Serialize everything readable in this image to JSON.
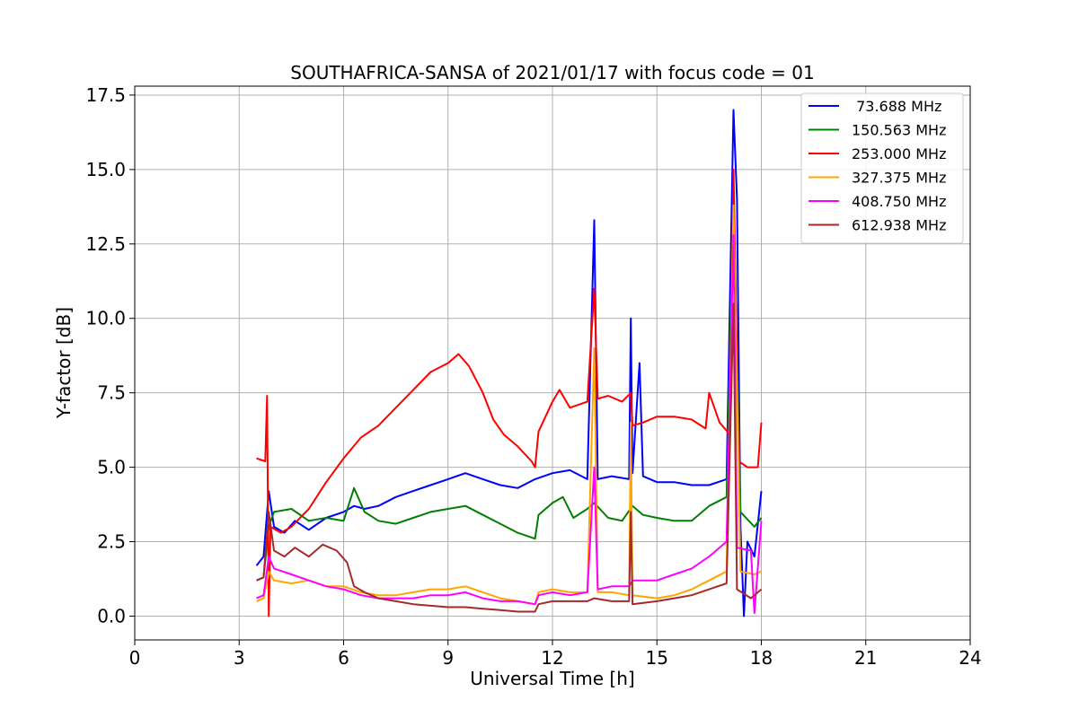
{
  "chart_data": {
    "type": "line",
    "title": "SOUTHAFRICA-SANSA of 2021/01/17 with focus code = 01",
    "xlabel": "Universal Time [h]",
    "ylabel": "Y-factor [dB]",
    "xlim": [
      0,
      24
    ],
    "ylim": [
      -0.8,
      17.8
    ],
    "xticks": [
      0,
      3,
      6,
      9,
      12,
      15,
      18,
      21,
      24
    ],
    "yticks": [
      0.0,
      2.5,
      5.0,
      7.5,
      10.0,
      12.5,
      15.0,
      17.5
    ],
    "xtick_labels": [
      "0",
      "3",
      "6",
      "9",
      "12",
      "15",
      "18",
      "21",
      "24"
    ],
    "ytick_labels": [
      "0.0",
      "2.5",
      "5.0",
      "7.5",
      "10.0",
      "12.5",
      "15.0",
      "17.5"
    ],
    "grid": true,
    "legend_position": "top-right",
    "series": [
      {
        "name": " 73.688 MHz",
        "color": "#0000ff",
        "points": [
          [
            3.5,
            1.7
          ],
          [
            3.7,
            2.0
          ],
          [
            3.85,
            4.2
          ],
          [
            4.0,
            3.0
          ],
          [
            4.3,
            2.8
          ],
          [
            4.6,
            3.2
          ],
          [
            5.0,
            2.9
          ],
          [
            5.5,
            3.3
          ],
          [
            6.0,
            3.5
          ],
          [
            6.3,
            3.7
          ],
          [
            6.6,
            3.6
          ],
          [
            7.0,
            3.7
          ],
          [
            7.5,
            4.0
          ],
          [
            8.0,
            4.2
          ],
          [
            8.5,
            4.4
          ],
          [
            9.0,
            4.6
          ],
          [
            9.5,
            4.8
          ],
          [
            10.0,
            4.6
          ],
          [
            10.5,
            4.4
          ],
          [
            11.0,
            4.3
          ],
          [
            11.5,
            4.6
          ],
          [
            12.0,
            4.8
          ],
          [
            12.5,
            4.9
          ],
          [
            13.0,
            4.6
          ],
          [
            13.2,
            13.3
          ],
          [
            13.3,
            4.6
          ],
          [
            13.7,
            4.7
          ],
          [
            14.2,
            4.6
          ],
          [
            14.25,
            10.0
          ],
          [
            14.3,
            4.8
          ],
          [
            14.5,
            8.5
          ],
          [
            14.6,
            4.7
          ],
          [
            15.0,
            4.5
          ],
          [
            15.5,
            4.5
          ],
          [
            16.0,
            4.4
          ],
          [
            16.5,
            4.4
          ],
          [
            17.0,
            4.6
          ],
          [
            17.2,
            17.0
          ],
          [
            17.3,
            14.0
          ],
          [
            17.4,
            3.0
          ],
          [
            17.5,
            0.0
          ],
          [
            17.6,
            2.5
          ],
          [
            17.8,
            2.0
          ],
          [
            18.0,
            4.2
          ]
        ]
      },
      {
        "name": "150.563 MHz",
        "color": "#008000",
        "points": [
          [
            3.5,
            1.2
          ],
          [
            3.7,
            1.3
          ],
          [
            3.85,
            3.0
          ],
          [
            4.0,
            3.5
          ],
          [
            4.5,
            3.6
          ],
          [
            5.0,
            3.2
          ],
          [
            5.5,
            3.3
          ],
          [
            6.0,
            3.2
          ],
          [
            6.3,
            4.3
          ],
          [
            6.6,
            3.5
          ],
          [
            7.0,
            3.2
          ],
          [
            7.5,
            3.1
          ],
          [
            8.0,
            3.3
          ],
          [
            8.5,
            3.5
          ],
          [
            9.0,
            3.6
          ],
          [
            9.5,
            3.7
          ],
          [
            10.0,
            3.4
          ],
          [
            10.5,
            3.1
          ],
          [
            11.0,
            2.8
          ],
          [
            11.5,
            2.6
          ],
          [
            11.6,
            3.4
          ],
          [
            12.0,
            3.8
          ],
          [
            12.3,
            4.0
          ],
          [
            12.6,
            3.3
          ],
          [
            13.0,
            3.6
          ],
          [
            13.2,
            3.8
          ],
          [
            13.6,
            3.3
          ],
          [
            14.0,
            3.2
          ],
          [
            14.3,
            3.7
          ],
          [
            14.6,
            3.4
          ],
          [
            15.0,
            3.3
          ],
          [
            15.5,
            3.2
          ],
          [
            16.0,
            3.2
          ],
          [
            16.5,
            3.7
          ],
          [
            17.0,
            4.0
          ],
          [
            17.2,
            14.0
          ],
          [
            17.4,
            3.5
          ],
          [
            17.8,
            3.0
          ],
          [
            18.0,
            3.3
          ]
        ]
      },
      {
        "name": "253.000 MHz",
        "color": "#ff0000",
        "points": [
          [
            3.5,
            5.3
          ],
          [
            3.75,
            5.2
          ],
          [
            3.8,
            7.4
          ],
          [
            3.85,
            0.0
          ],
          [
            3.9,
            3.0
          ],
          [
            4.2,
            2.8
          ],
          [
            4.5,
            3.0
          ],
          [
            5.0,
            3.6
          ],
          [
            5.5,
            4.5
          ],
          [
            6.0,
            5.3
          ],
          [
            6.5,
            6.0
          ],
          [
            7.0,
            6.4
          ],
          [
            7.5,
            7.0
          ],
          [
            8.0,
            7.6
          ],
          [
            8.5,
            8.2
          ],
          [
            9.0,
            8.5
          ],
          [
            9.3,
            8.8
          ],
          [
            9.6,
            8.4
          ],
          [
            10.0,
            7.5
          ],
          [
            10.3,
            6.6
          ],
          [
            10.6,
            6.1
          ],
          [
            11.0,
            5.7
          ],
          [
            11.4,
            5.2
          ],
          [
            11.5,
            5.0
          ],
          [
            11.6,
            6.2
          ],
          [
            12.0,
            7.2
          ],
          [
            12.2,
            7.6
          ],
          [
            12.5,
            7.0
          ],
          [
            13.0,
            7.2
          ],
          [
            13.2,
            11.0
          ],
          [
            13.3,
            7.3
          ],
          [
            13.6,
            7.4
          ],
          [
            14.0,
            7.2
          ],
          [
            14.25,
            7.5
          ],
          [
            14.3,
            6.4
          ],
          [
            14.6,
            6.5
          ],
          [
            15.0,
            6.7
          ],
          [
            15.5,
            6.7
          ],
          [
            16.0,
            6.6
          ],
          [
            16.4,
            6.3
          ],
          [
            16.5,
            7.5
          ],
          [
            16.8,
            6.5
          ],
          [
            17.1,
            6.1
          ],
          [
            17.2,
            15.0
          ],
          [
            17.35,
            5.2
          ],
          [
            17.6,
            5.0
          ],
          [
            17.9,
            5.0
          ],
          [
            18.0,
            6.5
          ]
        ]
      },
      {
        "name": "327.375 MHz",
        "color": "#ffa500",
        "points": [
          [
            3.5,
            0.5
          ],
          [
            3.7,
            0.6
          ],
          [
            3.85,
            1.5
          ],
          [
            4.0,
            1.2
          ],
          [
            4.5,
            1.1
          ],
          [
            5.0,
            1.2
          ],
          [
            5.5,
            1.0
          ],
          [
            6.0,
            1.0
          ],
          [
            6.5,
            0.8
          ],
          [
            7.0,
            0.7
          ],
          [
            7.5,
            0.7
          ],
          [
            8.0,
            0.8
          ],
          [
            8.5,
            0.9
          ],
          [
            9.0,
            0.9
          ],
          [
            9.5,
            1.0
          ],
          [
            10.0,
            0.8
          ],
          [
            10.5,
            0.6
          ],
          [
            11.0,
            0.5
          ],
          [
            11.5,
            0.4
          ],
          [
            11.6,
            0.8
          ],
          [
            12.0,
            0.9
          ],
          [
            12.5,
            0.8
          ],
          [
            13.0,
            0.8
          ],
          [
            13.2,
            9.0
          ],
          [
            13.3,
            0.8
          ],
          [
            13.7,
            0.8
          ],
          [
            14.2,
            0.7
          ],
          [
            14.25,
            6.5
          ],
          [
            14.3,
            0.7
          ],
          [
            15.0,
            0.6
          ],
          [
            15.5,
            0.7
          ],
          [
            16.0,
            0.9
          ],
          [
            16.5,
            1.2
          ],
          [
            17.0,
            1.5
          ],
          [
            17.2,
            13.8
          ],
          [
            17.4,
            1.5
          ],
          [
            17.8,
            1.4
          ],
          [
            18.0,
            1.5
          ]
        ]
      },
      {
        "name": "408.750 MHz",
        "color": "#ff00ff",
        "points": [
          [
            3.5,
            0.6
          ],
          [
            3.7,
            0.7
          ],
          [
            3.85,
            2.0
          ],
          [
            4.0,
            1.6
          ],
          [
            4.5,
            1.4
          ],
          [
            5.0,
            1.2
          ],
          [
            5.5,
            1.0
          ],
          [
            6.0,
            0.9
          ],
          [
            6.5,
            0.7
          ],
          [
            7.0,
            0.6
          ],
          [
            7.5,
            0.6
          ],
          [
            8.0,
            0.6
          ],
          [
            8.5,
            0.7
          ],
          [
            9.0,
            0.7
          ],
          [
            9.5,
            0.8
          ],
          [
            10.0,
            0.6
          ],
          [
            10.5,
            0.5
          ],
          [
            11.0,
            0.5
          ],
          [
            11.5,
            0.4
          ],
          [
            11.6,
            0.7
          ],
          [
            12.0,
            0.8
          ],
          [
            12.5,
            0.7
          ],
          [
            13.0,
            0.8
          ],
          [
            13.2,
            5.0
          ],
          [
            13.3,
            0.9
          ],
          [
            13.7,
            1.0
          ],
          [
            14.2,
            1.0
          ],
          [
            14.3,
            1.2
          ],
          [
            15.0,
            1.2
          ],
          [
            15.5,
            1.4
          ],
          [
            16.0,
            1.6
          ],
          [
            16.5,
            2.0
          ],
          [
            17.0,
            2.5
          ],
          [
            17.2,
            12.8
          ],
          [
            17.3,
            2.3
          ],
          [
            17.7,
            2.2
          ],
          [
            17.8,
            0.1
          ],
          [
            18.0,
            3.2
          ]
        ]
      },
      {
        "name": "612.938 MHz",
        "color": "#a52a2a",
        "points": [
          [
            3.5,
            1.2
          ],
          [
            3.7,
            1.3
          ],
          [
            3.85,
            3.5
          ],
          [
            4.0,
            2.2
          ],
          [
            4.3,
            2.0
          ],
          [
            4.6,
            2.3
          ],
          [
            5.0,
            2.0
          ],
          [
            5.4,
            2.4
          ],
          [
            5.8,
            2.2
          ],
          [
            6.1,
            1.8
          ],
          [
            6.3,
            1.0
          ],
          [
            6.6,
            0.8
          ],
          [
            7.0,
            0.6
          ],
          [
            7.5,
            0.5
          ],
          [
            8.0,
            0.4
          ],
          [
            8.5,
            0.35
          ],
          [
            9.0,
            0.3
          ],
          [
            9.5,
            0.3
          ],
          [
            10.0,
            0.25
          ],
          [
            10.5,
            0.2
          ],
          [
            11.0,
            0.15
          ],
          [
            11.5,
            0.15
          ],
          [
            11.6,
            0.4
          ],
          [
            12.0,
            0.5
          ],
          [
            12.5,
            0.5
          ],
          [
            13.0,
            0.5
          ],
          [
            13.2,
            0.6
          ],
          [
            13.7,
            0.5
          ],
          [
            14.2,
            0.5
          ],
          [
            14.25,
            3.5
          ],
          [
            14.3,
            0.4
          ],
          [
            15.0,
            0.5
          ],
          [
            15.5,
            0.6
          ],
          [
            16.0,
            0.7
          ],
          [
            16.5,
            0.9
          ],
          [
            17.0,
            1.1
          ],
          [
            17.2,
            10.5
          ],
          [
            17.3,
            0.9
          ],
          [
            17.7,
            0.6
          ],
          [
            18.0,
            0.9
          ]
        ]
      }
    ]
  }
}
